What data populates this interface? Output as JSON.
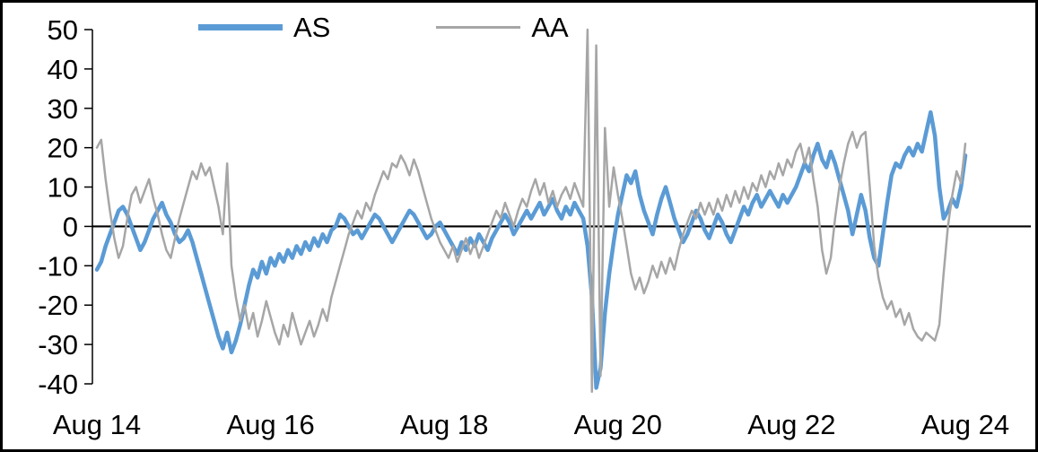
{
  "chart_data": {
    "type": "line",
    "title": "",
    "xlabel": "",
    "ylabel": "",
    "x_tick_labels": [
      "Aug 14",
      "Aug 16",
      "Aug 18",
      "Aug 20",
      "Aug 22",
      "Aug 24"
    ],
    "x_tick_positions_days": [
      0,
      2,
      4,
      6,
      8,
      10
    ],
    "y_ticks": [
      50,
      40,
      30,
      20,
      10,
      0,
      -10,
      -20,
      -30,
      -40
    ],
    "ylim": [
      -40,
      50
    ],
    "x_range_days": [
      0,
      10
    ],
    "points_per_day": 20,
    "grid": false,
    "zero_line": true,
    "legend_position": "top",
    "axis_color": "#000000",
    "series": [
      {
        "name": "AS",
        "color": "#5B9BD5",
        "stroke_width": 4.5,
        "values": [
          -11,
          -9,
          -5,
          -2,
          1,
          4,
          5,
          3,
          0,
          -3,
          -6,
          -4,
          -1,
          2,
          4,
          6,
          3,
          1,
          -2,
          -4,
          -3,
          -1,
          -4,
          -8,
          -12,
          -16,
          -20,
          -24,
          -28,
          -31,
          -27,
          -32,
          -29,
          -25,
          -20,
          -15,
          -11,
          -13,
          -9,
          -12,
          -8,
          -10,
          -7,
          -9,
          -6,
          -8,
          -5,
          -7,
          -4,
          -6,
          -3,
          -5,
          -2,
          -4,
          -1,
          0,
          3,
          2,
          0,
          -2,
          -1,
          -3,
          -1,
          1,
          3,
          2,
          0,
          -2,
          -4,
          -2,
          0,
          2,
          4,
          3,
          1,
          -1,
          -3,
          -2,
          0,
          1,
          -1,
          -3,
          -5,
          -7,
          -4,
          -6,
          -3,
          -5,
          -2,
          -4,
          -6,
          -3,
          -1,
          1,
          3,
          1,
          -2,
          0,
          2,
          4,
          2,
          4,
          6,
          3,
          5,
          7,
          4,
          2,
          5,
          3,
          6,
          4,
          2,
          -5,
          -18,
          -41,
          -36,
          -22,
          -12,
          -4,
          3,
          8,
          13,
          11,
          14,
          8,
          4,
          1,
          -2,
          3,
          7,
          10,
          6,
          2,
          -1,
          -4,
          -2,
          1,
          4,
          2,
          -1,
          -3,
          0,
          3,
          1,
          -2,
          -4,
          -1,
          2,
          5,
          3,
          6,
          8,
          5,
          7,
          9,
          7,
          5,
          8,
          6,
          8,
          10,
          13,
          16,
          14,
          18,
          21,
          17,
          15,
          19,
          16,
          12,
          8,
          4,
          -2,
          3,
          8,
          4,
          -3,
          -8,
          -10,
          -2,
          6,
          13,
          16,
          15,
          18,
          20,
          18,
          21,
          19,
          24,
          29,
          23,
          10,
          2,
          4,
          7,
          5,
          10,
          18
        ]
      },
      {
        "name": "AA",
        "color": "#A6A6A6",
        "stroke_width": 2.5,
        "values": [
          20,
          22,
          12,
          4,
          -3,
          -8,
          -5,
          2,
          8,
          10,
          6,
          9,
          12,
          7,
          3,
          -2,
          -6,
          -8,
          -3,
          2,
          6,
          10,
          14,
          12,
          16,
          13,
          15,
          10,
          5,
          -2,
          16,
          -10,
          -18,
          -24,
          -20,
          -26,
          -22,
          -28,
          -24,
          -19,
          -23,
          -27,
          -30,
          -25,
          -28,
          -22,
          -26,
          -30,
          -27,
          -24,
          -28,
          -25,
          -21,
          -24,
          -18,
          -14,
          -10,
          -6,
          -2,
          1,
          4,
          2,
          6,
          4,
          8,
          11,
          14,
          12,
          16,
          15,
          18,
          16,
          13,
          17,
          14,
          10,
          6,
          2,
          -1,
          -4,
          -6,
          -8,
          -5,
          -9,
          -6,
          -3,
          -7,
          -4,
          -8,
          -5,
          -2,
          1,
          4,
          2,
          6,
          3,
          0,
          4,
          7,
          5,
          9,
          12,
          8,
          11,
          6,
          9,
          5,
          8,
          10,
          7,
          11,
          8,
          5,
          50,
          -42,
          46,
          -38,
          25,
          5,
          15,
          8,
          2,
          -5,
          -12,
          -16,
          -13,
          -17,
          -14,
          -10,
          -13,
          -9,
          -12,
          -8,
          -11,
          -6,
          -2,
          1,
          4,
          2,
          6,
          3,
          6,
          3,
          7,
          4,
          8,
          5,
          9,
          6,
          10,
          7,
          11,
          9,
          13,
          10,
          14,
          12,
          16,
          13,
          17,
          15,
          19,
          21,
          16,
          20,
          12,
          5,
          -6,
          -12,
          -8,
          2,
          10,
          16,
          21,
          24,
          20,
          23,
          24,
          10,
          -5,
          -13,
          -18,
          -21,
          -19,
          -23,
          -21,
          -25,
          -22,
          -26,
          -28,
          -29,
          -27,
          -28,
          -29,
          -25,
          -12,
          0,
          8,
          14,
          11,
          21
        ]
      }
    ]
  }
}
